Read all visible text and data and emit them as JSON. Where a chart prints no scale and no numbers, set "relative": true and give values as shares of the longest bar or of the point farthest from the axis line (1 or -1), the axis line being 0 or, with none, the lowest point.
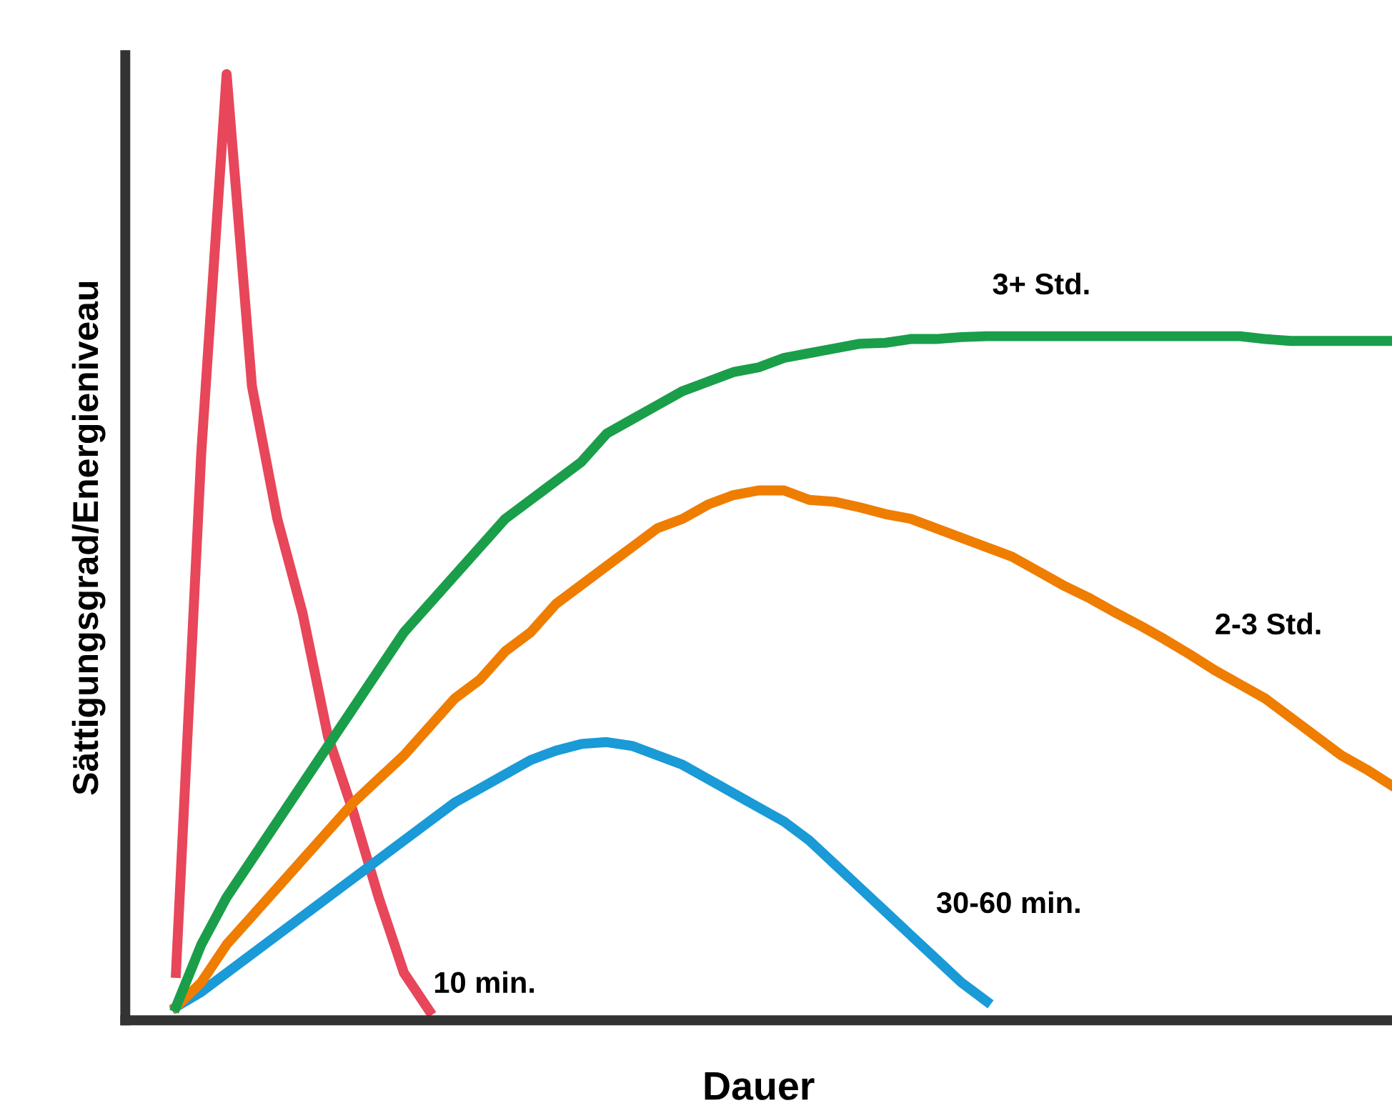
{
  "chart_data": {
    "type": "line",
    "relative": true,
    "xlabel": "Dauer",
    "ylabel": "Sättigungsgrad/Energieniveau",
    "line_style": "solid",
    "categories": [
      null,
      null,
      null,
      null,
      null,
      null,
      null,
      null,
      null,
      null,
      null,
      null,
      null,
      null,
      null,
      null,
      null,
      null,
      null,
      null,
      null,
      null,
      null,
      null,
      null,
      null,
      null,
      null,
      null,
      null,
      null,
      null,
      null,
      null,
      null,
      null,
      null,
      null,
      null,
      null,
      null,
      null,
      null,
      null,
      null,
      null,
      null,
      null,
      null,
      null,
      null
    ],
    "series": [
      {
        "name": "10 min.",
        "color": "#e8465a",
        "values": [
          null,
          null,
          0.05,
          0.6,
          1.0,
          0.67,
          0.53,
          0.43,
          0.3,
          0.22,
          0.13,
          0.05,
          0.01,
          null,
          null,
          null,
          null,
          null,
          null,
          null,
          null,
          null,
          null,
          null,
          null,
          null,
          null,
          null,
          null,
          null,
          null,
          null,
          null,
          null,
          null,
          null,
          null,
          null,
          null,
          null,
          null,
          null,
          null,
          null,
          null,
          null,
          null,
          null,
          null,
          null,
          null
        ]
      },
      {
        "name": "30-60 min.",
        "color": "#1a9ad6",
        "values": [
          null,
          null,
          0.014,
          0.03,
          0.05,
          0.07,
          0.09,
          0.11,
          0.13,
          0.15,
          0.17,
          0.19,
          0.21,
          0.23,
          0.245,
          0.26,
          0.275,
          0.285,
          0.292,
          0.294,
          0.29,
          0.28,
          0.27,
          0.255,
          0.24,
          0.225,
          0.21,
          0.19,
          0.165,
          0.14,
          0.115,
          0.09,
          0.065,
          0.04,
          0.02,
          null,
          null,
          null,
          null,
          null,
          null,
          null,
          null,
          null,
          null,
          null,
          null,
          null,
          null,
          null,
          null
        ]
      },
      {
        "name": "2-3 Std.",
        "color": "#ef7d00",
        "values": [
          null,
          null,
          0.014,
          0.04,
          0.08,
          0.11,
          0.14,
          0.17,
          0.2,
          0.23,
          0.255,
          0.28,
          0.31,
          0.34,
          0.36,
          0.39,
          0.41,
          0.44,
          0.46,
          0.48,
          0.5,
          0.52,
          0.53,
          0.545,
          0.555,
          0.56,
          0.56,
          0.55,
          0.548,
          0.542,
          0.535,
          0.53,
          0.52,
          0.51,
          0.5,
          0.49,
          0.475,
          0.46,
          0.447,
          0.432,
          0.418,
          0.403,
          0.387,
          0.37,
          0.355,
          0.34,
          0.32,
          0.3,
          0.28,
          0.265,
          0.248
        ]
      },
      {
        "name": "3+ Std.",
        "color": "#1a9e4a",
        "values": [
          null,
          null,
          0.014,
          0.08,
          0.13,
          0.17,
          0.21,
          0.25,
          0.29,
          0.33,
          0.37,
          0.41,
          0.44,
          0.47,
          0.5,
          0.53,
          0.55,
          0.57,
          0.59,
          0.62,
          0.635,
          0.65,
          0.665,
          0.675,
          0.685,
          0.69,
          0.7,
          0.705,
          0.71,
          0.715,
          0.716,
          0.72,
          0.72,
          0.722,
          0.723,
          0.723,
          0.723,
          0.723,
          0.723,
          0.723,
          0.723,
          0.723,
          0.723,
          0.723,
          0.723,
          0.72,
          0.718,
          0.718,
          0.718,
          0.718,
          0.718
        ]
      }
    ]
  }
}
